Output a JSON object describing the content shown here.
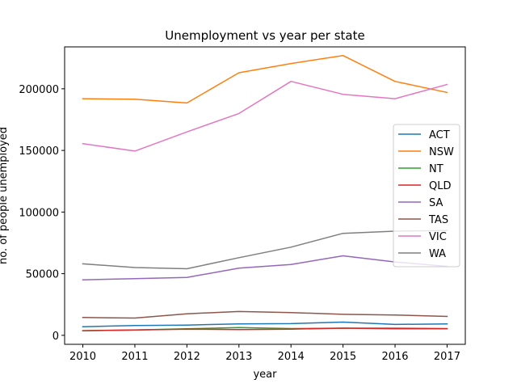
{
  "chart_data": {
    "type": "line",
    "title": "Unemployment vs year per state",
    "xlabel": "year",
    "ylabel": "no. of people unemployed",
    "x": [
      2010,
      2011,
      2012,
      2013,
      2014,
      2015,
      2016,
      2017
    ],
    "x_ticks": [
      "2010",
      "2011",
      "2012",
      "2013",
      "2014",
      "2015",
      "2016",
      "2017"
    ],
    "y_ticks": [
      {
        "value": 0,
        "label": "0"
      },
      {
        "value": 50000,
        "label": "50000"
      },
      {
        "value": 100000,
        "label": "100000"
      },
      {
        "value": 150000,
        "label": "150000"
      },
      {
        "value": 200000,
        "label": "200000"
      }
    ],
    "xlim": [
      2009.65,
      2017.35
    ],
    "ylim": [
      -7300,
      234000
    ],
    "grid": false,
    "legend_position": "center-right",
    "series": [
      {
        "name": "ACT",
        "color": "#1f77b4",
        "values": [
          7000,
          8000,
          8300,
          9300,
          9500,
          10700,
          8800,
          9300
        ]
      },
      {
        "name": "NSW",
        "color": "#ff7f0e",
        "values": [
          192000,
          191500,
          188500,
          213000,
          220500,
          227000,
          206000,
          197000
        ]
      },
      {
        "name": "NT",
        "color": "#2ca02c",
        "values": [
          3800,
          4300,
          5300,
          6300,
          5500,
          5800,
          5800,
          5500
        ]
      },
      {
        "name": "QLD",
        "color": "#d62728",
        "values": [
          3700,
          4300,
          5000,
          4700,
          5000,
          5800,
          5300,
          5300
        ]
      },
      {
        "name": "SA",
        "color": "#9467bd",
        "values": [
          45000,
          46000,
          47000,
          54500,
          57500,
          64500,
          59500,
          56000
        ]
      },
      {
        "name": "TAS",
        "color": "#8c564b",
        "values": [
          14500,
          14000,
          17500,
          19300,
          18500,
          17000,
          16500,
          15300
        ]
      },
      {
        "name": "VIC",
        "color": "#e377c2",
        "values": [
          155500,
          149500,
          165000,
          180000,
          206000,
          195500,
          192000,
          203500
        ]
      },
      {
        "name": "WA",
        "color": "#7f7f7f",
        "values": [
          58000,
          55000,
          54000,
          63000,
          71500,
          82700,
          84500,
          85000
        ]
      }
    ]
  }
}
